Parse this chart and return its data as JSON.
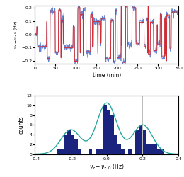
{
  "top_plot": {
    "xlabel": "time (min)",
    "ylabel": "$\\nu_z - \\nu_{z,0}$ (Hz)",
    "xlim": [
      0,
      350
    ],
    "ylim": [
      -0.22,
      0.22
    ],
    "xticks": [
      0,
      50,
      100,
      150,
      200,
      250,
      300,
      350
    ],
    "yticks": [
      -0.2,
      -0.1,
      0.0,
      0.1,
      0.2
    ],
    "line_color_blue": "#5577cc",
    "line_color_red": "#dd2222",
    "background": "#ffffff"
  },
  "bottom_plot": {
    "xlabel": "$\\nu_z - \\nu_{z,0}$ (Hz)",
    "ylabel": "counts",
    "xlim": [
      -0.4,
      0.4
    ],
    "ylim": [
      0,
      12
    ],
    "yticks": [
      0,
      2,
      4,
      6,
      8,
      10,
      12
    ],
    "xticks": [
      -0.4,
      -0.2,
      0.0,
      0.2,
      0.4
    ],
    "bar_color": "#1a237e",
    "gauss_color": "#26a69a",
    "vline_color": "#aaaaaa",
    "vlines": [
      -0.2,
      0.2
    ],
    "background": "#ffffff",
    "bin_edges": [
      -0.4,
      -0.38,
      -0.36,
      -0.34,
      -0.32,
      -0.3,
      -0.28,
      -0.26,
      -0.24,
      -0.22,
      -0.2,
      -0.18,
      -0.16,
      -0.14,
      -0.12,
      -0.1,
      -0.08,
      -0.06,
      -0.04,
      -0.02,
      0.0,
      0.02,
      0.04,
      0.06,
      0.08,
      0.1,
      0.12,
      0.14,
      0.16,
      0.18,
      0.2,
      0.22,
      0.24,
      0.26,
      0.28,
      0.3,
      0.32,
      0.34,
      0.36,
      0.38,
      0.4
    ],
    "bar_heights": [
      0,
      0,
      0,
      0,
      0,
      0,
      1,
      1,
      4,
      5,
      4,
      3,
      1,
      0,
      0,
      1,
      0,
      1,
      1,
      10,
      9,
      8,
      4,
      2,
      1,
      0,
      1,
      0,
      5,
      6,
      5,
      2,
      2,
      2,
      1,
      1,
      0,
      0,
      0,
      0
    ],
    "gauss_peaks": [
      {
        "amp": 10.5,
        "mu": 0.0,
        "sig": 0.055
      },
      {
        "amp": 5.0,
        "mu": -0.2,
        "sig": 0.055
      },
      {
        "amp": 6.0,
        "mu": 0.2,
        "sig": 0.055
      }
    ]
  }
}
